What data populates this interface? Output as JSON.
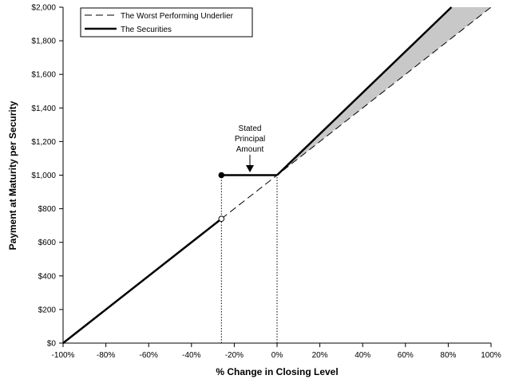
{
  "chart_data": {
    "type": "line",
    "title": "",
    "xlabel": "% Change in Closing Level",
    "ylabel": "Payment at Maturity per Security",
    "xlim": [
      -100,
      100
    ],
    "ylim": [
      0,
      2000
    ],
    "x_ticks": [
      -100,
      -80,
      -60,
      -40,
      -20,
      0,
      20,
      40,
      60,
      80,
      100
    ],
    "x_tick_labels": [
      "-100%",
      "-80%",
      "-60%",
      "-40%",
      "-20%",
      "0%",
      "20%",
      "40%",
      "60%",
      "80%",
      "100%"
    ],
    "y_ticks": [
      0,
      200,
      400,
      600,
      800,
      1000,
      1200,
      1400,
      1600,
      1800,
      2000
    ],
    "y_tick_labels": [
      "$0",
      "$200",
      "$400",
      "$600",
      "$800",
      "$1,000",
      "$1,200",
      "$1,400",
      "$1,600",
      "$1,800",
      "$2,000"
    ],
    "grid": false,
    "legend_position": "top-left",
    "series": [
      {
        "name": "The Worst Performing Underlier",
        "style": "dashed",
        "color": "#000000",
        "points": [
          [
            -100,
            0
          ],
          [
            100,
            2000
          ]
        ]
      },
      {
        "name": "The Securities",
        "style": "solid",
        "color": "#000000",
        "segments": [
          [
            [
              -100,
              0
            ],
            [
              -26,
              740
            ]
          ],
          [
            [
              -26,
              1000
            ],
            [
              0,
              1000
            ]
          ],
          [
            [
              0,
              1000
            ],
            [
              81.5,
              2000
            ]
          ]
        ]
      }
    ],
    "markers": [
      {
        "x": -26,
        "y": 1000,
        "fill": "filled"
      },
      {
        "x": -26,
        "y": 740,
        "fill": "open"
      }
    ],
    "reference_lines": [
      {
        "x": -26,
        "y_from": 0,
        "y_to": 1000,
        "style": "dotted"
      },
      {
        "x": 0,
        "y_from": 0,
        "y_to": 1000,
        "style": "dotted"
      }
    ],
    "shaded_region": {
      "color": "#c8c8c8",
      "polygon": [
        [
          0,
          1000
        ],
        [
          81.5,
          2000
        ],
        [
          100,
          2000
        ]
      ]
    },
    "annotations": [
      {
        "lines": [
          "Stated",
          "Principal",
          "Amount"
        ],
        "arrow_to": [
          -13,
          1000
        ]
      }
    ]
  }
}
